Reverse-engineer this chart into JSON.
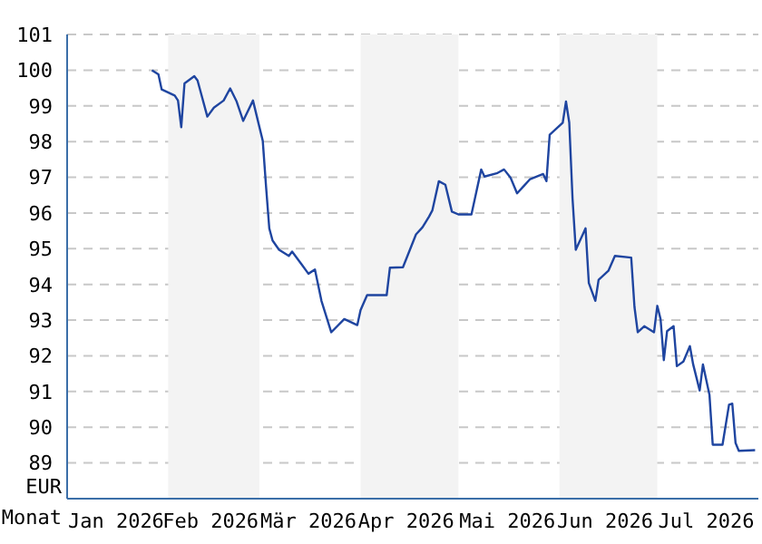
{
  "chart_data": {
    "type": "line",
    "xlabel": "Monat",
    "ylabel": "EUR",
    "x": [
      "2026-01-27",
      "2026-01-29",
      "2026-01-30",
      "2026-02-03",
      "2026-02-04",
      "2026-02-05",
      "2026-02-06",
      "2026-02-09",
      "2026-02-10",
      "2026-02-13",
      "2026-02-15",
      "2026-02-18",
      "2026-02-20",
      "2026-02-22",
      "2026-02-24",
      "2026-02-27",
      "2026-03-02",
      "2026-03-03",
      "2026-03-04",
      "2026-03-05",
      "2026-03-07",
      "2026-03-10",
      "2026-03-11",
      "2026-03-14",
      "2026-03-16",
      "2026-03-18",
      "2026-03-20",
      "2026-03-23",
      "2026-03-27",
      "2026-03-31",
      "2026-04-01",
      "2026-04-03",
      "2026-04-09",
      "2026-04-10",
      "2026-04-14",
      "2026-04-18",
      "2026-04-20",
      "2026-04-22",
      "2026-04-23",
      "2026-04-25",
      "2026-04-27",
      "2026-04-29",
      "2026-05-01",
      "2026-05-05",
      "2026-05-06",
      "2026-05-08",
      "2026-05-09",
      "2026-05-13",
      "2026-05-15",
      "2026-05-17",
      "2026-05-19",
      "2026-05-21",
      "2026-05-23",
      "2026-05-27",
      "2026-05-28",
      "2026-05-29",
      "2026-06-02",
      "2026-06-03",
      "2026-06-04",
      "2026-06-05",
      "2026-06-06",
      "2026-06-09",
      "2026-06-10",
      "2026-06-12",
      "2026-06-13",
      "2026-06-16",
      "2026-06-18",
      "2026-06-23",
      "2026-06-24",
      "2026-06-25",
      "2026-06-27",
      "2026-06-30",
      "2026-07-01",
      "2026-07-02",
      "2026-07-03",
      "2026-07-04",
      "2026-07-06",
      "2026-07-07",
      "2026-07-09",
      "2026-07-11",
      "2026-07-12",
      "2026-07-14",
      "2026-07-15",
      "2026-07-17",
      "2026-07-18",
      "2026-07-21",
      "2026-07-23",
      "2026-07-24",
      "2026-07-25",
      "2026-07-26",
      "2026-07-31"
    ],
    "series": [
      {
        "color": "#1f45a0",
        "values": [
          100.0,
          99.88,
          99.46,
          99.29,
          99.15,
          98.4,
          99.63,
          99.83,
          99.71,
          98.7,
          98.95,
          99.15,
          99.49,
          99.12,
          98.58,
          99.15,
          98.02,
          96.75,
          95.57,
          95.23,
          94.97,
          94.8,
          94.92,
          94.55,
          94.3,
          94.42,
          93.54,
          92.66,
          93.03,
          92.86,
          93.28,
          93.7,
          93.7,
          94.47,
          94.48,
          95.4,
          95.6,
          95.9,
          96.07,
          96.89,
          96.79,
          96.04,
          95.96,
          95.96,
          96.38,
          97.22,
          97.02,
          97.12,
          97.22,
          96.99,
          96.55,
          96.75,
          96.95,
          97.09,
          96.89,
          98.19,
          98.53,
          99.12,
          98.53,
          96.41,
          94.97,
          95.57,
          94.04,
          93.54,
          94.13,
          94.38,
          94.8,
          94.75,
          93.37,
          92.66,
          92.83,
          92.66,
          93.4,
          93.03,
          91.88,
          92.69,
          92.83,
          91.71,
          91.84,
          92.27,
          91.76,
          91.03,
          91.76,
          90.91,
          89.51,
          89.51,
          90.63,
          90.66,
          89.56,
          89.34,
          89.36
        ]
      }
    ],
    "xlim": [
      "2026-01-01",
      "2026-08-01"
    ],
    "xticks": [
      {
        "value": "2026-01-16",
        "label": "Jan 2026"
      },
      {
        "value": "2026-02-14",
        "label": "Feb 2026"
      },
      {
        "value": "2026-03-16",
        "label": "Mär 2026"
      },
      {
        "value": "2026-04-15",
        "label": "Apr 2026"
      },
      {
        "value": "2026-05-16",
        "label": "Mai 2026"
      },
      {
        "value": "2026-06-15",
        "label": "Jun 2026"
      },
      {
        "value": "2026-07-16",
        "label": "Jul 2026"
      }
    ],
    "ylim": [
      88,
      101
    ],
    "yticks": [
      89,
      90,
      91,
      92,
      93,
      94,
      95,
      96,
      97,
      98,
      99,
      100,
      101
    ],
    "bands": [
      {
        "axis": "x",
        "from": "2026-02-01",
        "to": "2026-03-01",
        "color": "#f3f3f3"
      },
      {
        "axis": "x",
        "from": "2026-04-01",
        "to": "2026-05-01",
        "color": "#f3f3f3"
      },
      {
        "axis": "x",
        "from": "2026-06-01",
        "to": "2026-07-01",
        "color": "#f3f3f3"
      }
    ],
    "grid": "y",
    "legend": false,
    "marker": "none",
    "line_style": "solid"
  }
}
